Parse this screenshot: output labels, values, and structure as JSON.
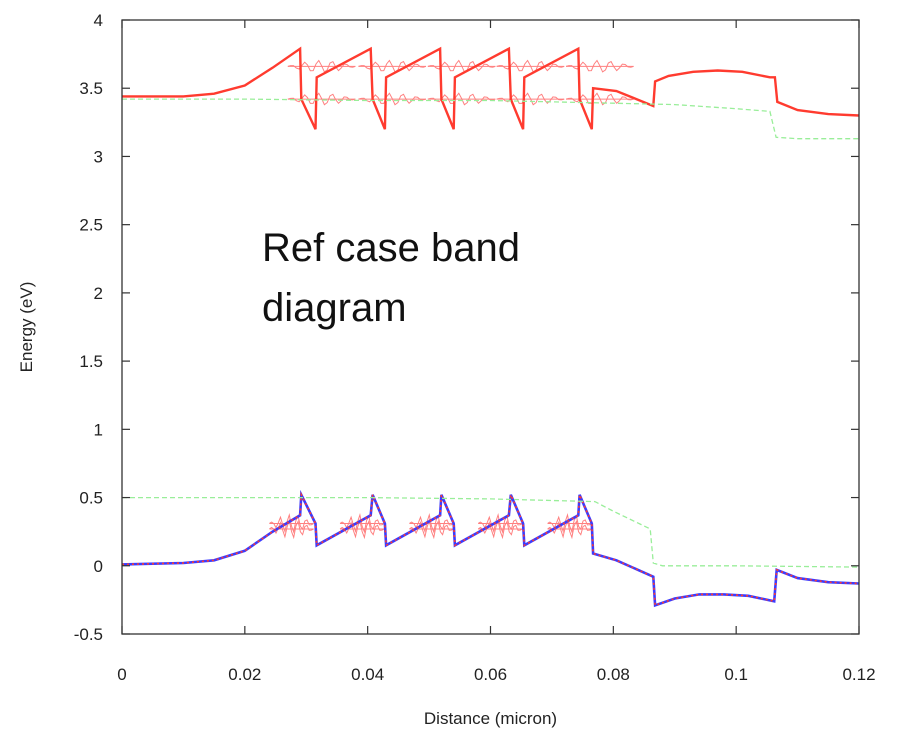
{
  "chart_data": {
    "type": "line",
    "title": "",
    "xlabel": "Distance (micron)",
    "ylabel": "Energy (eV)",
    "xlim": [
      0,
      0.12
    ],
    "ylim": [
      -0.5,
      4
    ],
    "xticks": [
      "0",
      "0.02",
      "0.04",
      "0.06",
      "0.08",
      "0.1",
      "0.12"
    ],
    "yticks": [
      "-0.5",
      "0",
      "0.5",
      "1",
      "1.5",
      "2",
      "2.5",
      "3",
      "3.5",
      "4"
    ],
    "grid": false,
    "annotation": [
      "Ref case band",
      "diagram"
    ],
    "series": [
      {
        "role": "conduction band",
        "color": "#ff3b2f",
        "style": "solid",
        "x": [
          0,
          0.01,
          0.015,
          0.02,
          0.0245,
          0.029,
          0.0292,
          0.0315,
          0.0317,
          0.0405,
          0.0408,
          0.0428,
          0.043,
          0.0518,
          0.052,
          0.054,
          0.0542,
          0.063,
          0.0633,
          0.0653,
          0.0655,
          0.0743,
          0.0745,
          0.0765,
          0.0767,
          0.0805,
          0.0865,
          0.0868,
          0.089,
          0.093,
          0.097,
          0.101,
          0.1055,
          0.1063,
          0.1067,
          0.11,
          0.115,
          0.12
        ],
        "y": [
          3.44,
          3.44,
          3.46,
          3.52,
          3.65,
          3.79,
          3.42,
          3.2,
          3.58,
          3.79,
          3.42,
          3.2,
          3.58,
          3.79,
          3.42,
          3.2,
          3.58,
          3.79,
          3.42,
          3.2,
          3.58,
          3.79,
          3.42,
          3.2,
          3.5,
          3.48,
          3.37,
          3.55,
          3.59,
          3.62,
          3.63,
          3.62,
          3.58,
          3.58,
          3.4,
          3.34,
          3.31,
          3.3
        ]
      },
      {
        "role": "conduction band reference (dashed)",
        "color": "#99ee99",
        "style": "dashed",
        "x": [
          0,
          0.01,
          0.02,
          0.04,
          0.06,
          0.08,
          0.09,
          0.1,
          0.1055,
          0.1065,
          0.11,
          0.12
        ],
        "y": [
          3.42,
          3.42,
          3.42,
          3.41,
          3.41,
          3.39,
          3.38,
          3.35,
          3.33,
          3.14,
          3.13,
          3.13
        ]
      },
      {
        "role": "valence band",
        "color": "#3b3bff",
        "style": "solid-dotted-red",
        "x": [
          0,
          0.01,
          0.015,
          0.02,
          0.0245,
          0.029,
          0.0292,
          0.0315,
          0.0317,
          0.0405,
          0.0408,
          0.0428,
          0.043,
          0.0518,
          0.052,
          0.054,
          0.0542,
          0.063,
          0.0633,
          0.0653,
          0.0655,
          0.0743,
          0.0745,
          0.0765,
          0.0767,
          0.0805,
          0.0865,
          0.0868,
          0.09,
          0.094,
          0.098,
          0.102,
          0.1062,
          0.1066,
          0.11,
          0.115,
          0.12
        ],
        "y": [
          0.01,
          0.02,
          0.04,
          0.11,
          0.25,
          0.37,
          0.52,
          0.31,
          0.15,
          0.37,
          0.52,
          0.31,
          0.15,
          0.37,
          0.52,
          0.31,
          0.15,
          0.37,
          0.52,
          0.31,
          0.15,
          0.37,
          0.52,
          0.31,
          0.09,
          0.04,
          -0.08,
          -0.29,
          -0.24,
          -0.21,
          -0.21,
          -0.22,
          -0.26,
          -0.03,
          -0.09,
          -0.12,
          -0.13
        ]
      },
      {
        "role": "valence band reference (dashed)",
        "color": "#99ee99",
        "style": "dashed",
        "x": [
          0,
          0.02,
          0.04,
          0.06,
          0.077,
          0.08,
          0.086,
          0.0865,
          0.088,
          0.1,
          0.12
        ],
        "y": [
          0.5,
          0.5,
          0.5,
          0.49,
          0.47,
          0.4,
          0.27,
          0.02,
          0.0,
          0.0,
          -0.01
        ]
      }
    ],
    "wavefunction_overlays": {
      "color": "#ff8080",
      "conduction_well_x": [
        0.029,
        0.0405,
        0.0518,
        0.063,
        0.0743
      ],
      "conduction_levels": [
        3.42,
        3.66
      ],
      "valence_well_x": [
        0.029,
        0.0405,
        0.0518,
        0.063,
        0.0743
      ],
      "valence_levels": [
        0.27,
        0.31
      ]
    }
  }
}
